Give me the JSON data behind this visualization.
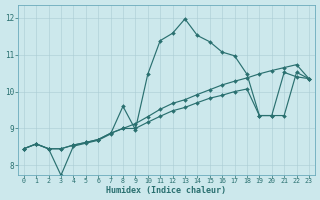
{
  "xlabel": "Humidex (Indice chaleur)",
  "bg_color": "#cce8ec",
  "grid_color": "#aacdd4",
  "line_color": "#2a7070",
  "xlim": [
    -0.5,
    23.5
  ],
  "ylim": [
    7.75,
    12.35
  ],
  "xticks": [
    0,
    1,
    2,
    3,
    4,
    5,
    6,
    7,
    8,
    9,
    10,
    11,
    12,
    13,
    14,
    15,
    16,
    17,
    18,
    19,
    20,
    21,
    22,
    23
  ],
  "yticks": [
    8,
    9,
    10,
    11,
    12
  ],
  "line_peak_x": [
    0,
    1,
    2,
    3,
    4,
    5,
    6,
    7,
    8,
    9,
    10,
    11,
    12,
    13,
    14,
    15,
    16,
    17,
    18,
    19,
    20,
    21,
    22,
    23
  ],
  "line_peak_y": [
    8.45,
    8.58,
    8.45,
    7.73,
    8.52,
    8.6,
    8.68,
    8.85,
    9.6,
    8.97,
    10.47,
    11.38,
    11.58,
    11.97,
    11.52,
    11.35,
    11.07,
    10.97,
    10.47,
    9.35,
    9.35,
    10.52,
    10.4,
    10.35
  ],
  "line_mid_x": [
    0,
    1,
    2,
    3,
    4,
    5,
    6,
    7,
    8,
    9,
    10,
    11,
    12,
    13,
    14,
    15,
    16,
    17,
    18,
    19,
    20,
    21,
    22,
    23
  ],
  "line_mid_y": [
    8.45,
    8.58,
    8.45,
    8.45,
    8.55,
    8.62,
    8.7,
    8.87,
    9.0,
    9.0,
    9.17,
    9.33,
    9.48,
    9.57,
    9.7,
    9.82,
    9.9,
    10.0,
    10.07,
    9.35,
    9.35,
    9.35,
    10.52,
    10.35
  ],
  "line_base_x": [
    0,
    1,
    2,
    3,
    4,
    5,
    6,
    7,
    8,
    9,
    10,
    11,
    12,
    13,
    14,
    15,
    16,
    17,
    18,
    19,
    20,
    21,
    22,
    23
  ],
  "line_base_y": [
    8.45,
    8.58,
    8.45,
    8.45,
    8.55,
    8.62,
    8.7,
    8.87,
    9.0,
    9.13,
    9.32,
    9.52,
    9.68,
    9.78,
    9.92,
    10.05,
    10.18,
    10.28,
    10.37,
    10.48,
    10.57,
    10.65,
    10.73,
    10.35
  ]
}
